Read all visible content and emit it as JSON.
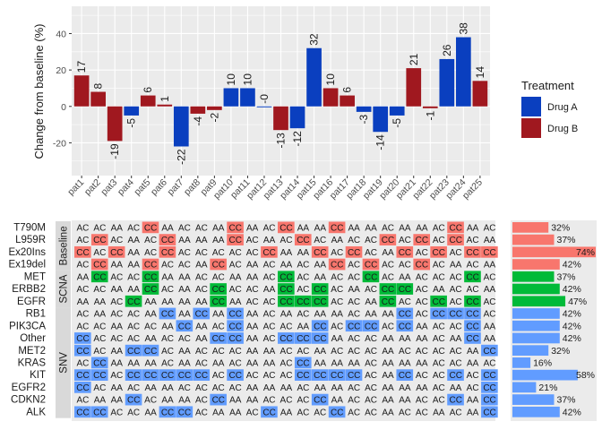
{
  "colors": {
    "drug_a": "#0a3fbf",
    "drug_b": "#a0181f",
    "baseline": "#f8766d",
    "scna": "#00ba38",
    "snv": "#619cff",
    "panel_bg": "#ebebeb",
    "strip_bg": "#d9d9d9",
    "grid": "#ffffff"
  },
  "chart_data": [
    {
      "type": "bar",
      "ylabel": "Change from baseline (%)",
      "ylim": [
        -38,
        55
      ],
      "yticks": [
        -20,
        0,
        20,
        40
      ],
      "grid": true,
      "legend": {
        "title": "Treatment",
        "position": "right",
        "entries": [
          {
            "label": "Drug A",
            "color_key": "drug_a"
          },
          {
            "label": "Drug B",
            "color_key": "drug_b"
          }
        ]
      },
      "categories": [
        "pat1",
        "pat2",
        "pat3",
        "pat4",
        "pat5",
        "pat6",
        "pat7",
        "pat8",
        "pat9",
        "pat10",
        "pat11",
        "pat12",
        "pat13",
        "pat14",
        "pat15",
        "pat16",
        "pat17",
        "pat18",
        "pat19",
        "pat20",
        "pat21",
        "pat22",
        "pat23",
        "pat24",
        "pat25"
      ],
      "values": [
        17,
        8,
        -19,
        -5,
        6,
        1,
        -22,
        -4,
        -2,
        10,
        10,
        0,
        -13,
        -12,
        32,
        10,
        6,
        -3,
        -14,
        -5,
        21,
        -1,
        26,
        38,
        14
      ],
      "labels": [
        "17",
        "8",
        "-19",
        "-5",
        "6",
        "1",
        "-22",
        "-4",
        "-2",
        "10",
        "10",
        "-0",
        "-13",
        "-12",
        "32",
        "10",
        "6",
        "-3",
        "-14",
        "-5",
        "21",
        "-1",
        "26",
        "38",
        "14"
      ],
      "treatment": [
        "Drug B",
        "Drug B",
        "Drug B",
        "Drug A",
        "Drug B",
        "Drug B",
        "Drug A",
        "Drug B",
        "Drug B",
        "Drug A",
        "Drug A",
        "Drug A",
        "Drug B",
        "Drug A",
        "Drug A",
        "Drug B",
        "Drug B",
        "Drug A",
        "Drug A",
        "Drug A",
        "Drug B",
        "Drug B",
        "Drug A",
        "Drug A",
        "Drug B"
      ]
    },
    {
      "type": "heatmap",
      "groups": [
        {
          "label": "Baseline",
          "color_key": "baseline"
        },
        {
          "label": "SCNA",
          "color_key": "scna"
        },
        {
          "label": "SNV",
          "color_key": "snv"
        }
      ],
      "rows": [
        {
          "gene": "T790M",
          "group": 0,
          "cells": "AC AC AA AC CC AA AC AC AA CC AA AC CC AA AA CC AA AA AC AA AA AC CC AA AC",
          "pct": 32,
          "pct_label": "32%"
        },
        {
          "gene": "L959R",
          "group": 0,
          "cells": "AC CC AC AA AC CC AA AA AA CC AC AA AC CC AC AA AC AC CC AC CC AC CC AC AA",
          "pct": 37,
          "pct_label": "37%"
        },
        {
          "gene": "Ex20Ins",
          "group": 0,
          "cells": "CC AC CC AA AC CC AC AC AC AC AC CC AA AA CC AC CC AC AA CC AC CC AC CC CC",
          "pct": 74,
          "pct_label": "74%"
        },
        {
          "gene": "Ex19del",
          "group": 0,
          "cells": "AC CC AA AA CC AC AC AA CC AC AA AC AA AC AA CC AC CC AC AC CC AC AA AC AA",
          "pct": 42,
          "pct_label": "42%"
        },
        {
          "gene": "MET",
          "group": 1,
          "cells": "AA CC AC AC CC AA AA AC AC AA AA AC CC AC AA AC AC CC AC AA AC AC AC CC AC",
          "pct": 37,
          "pct_label": "37%"
        },
        {
          "gene": "ERBB2",
          "group": 1,
          "cells": "AC AC AA AA CC AC AA AC CC AC AC AA CC AC CC AC AA AC CC CC AC AA AC AC AA",
          "pct": 42,
          "pct_label": "42%"
        },
        {
          "gene": "EGFR",
          "group": 1,
          "cells": "AA AA AC CC AA AA AA AA CC AA AC AC CC CC CC AC AC AA CC AC AC CC AC CC AC",
          "pct": 47,
          "pct_label": "47%"
        },
        {
          "gene": "RB1",
          "group": 2,
          "cells": "AC AA AC AC AA CC AA CC AA CC AA AC AA AC AA AA AC AA AA CC AC CC CC CC AC",
          "pct": 42,
          "pct_label": "42%"
        },
        {
          "gene": "PIK3CA",
          "group": 2,
          "cells": "AC AC AA AC AC AA CC AA AC CC AA AC AC AA CC AC CC CC AC CC AA AC AC CC AA",
          "pct": 42,
          "pct_label": "42%"
        },
        {
          "gene": "Other",
          "group": 2,
          "cells": "CC AC AC AC AA AC AC AA CC CC AA AC CC CC CC AA AC AC AA AA AA AC AA CC AA",
          "pct": 42,
          "pct_label": "42%"
        },
        {
          "gene": "MET2",
          "group": 2,
          "cells": "CC AC AA CC CC AC AA AC AC AC AA AA AC AC AA AC AC AC AA AC AC AC AC AA CC",
          "pct": 32,
          "pct_label": "32%"
        },
        {
          "gene": "KRAS",
          "group": 2,
          "cells": "AC CC AA AA AA AC AA AC AA AC AA AA AC CC AA AA AA AC AA AA AA AC AC AA AC",
          "pct": 16,
          "pct_label": "16%"
        },
        {
          "gene": "KIT",
          "group": 2,
          "cells": "CC CC AC CC CC CC CC CC AC CC AC AC AC CC CC CC CC AC AA CC AC AC CC AC CC",
          "pct": 58,
          "pct_label": "58%"
        },
        {
          "gene": "EGFR2",
          "group": 2,
          "cells": "CC AC AA AC AA AA AC AC AC AC AA AA AA AC AA AA AC AC AA AA AA AC AA AC CC",
          "pct": 21,
          "pct_label": "21%"
        },
        {
          "gene": "CDKN2",
          "group": 2,
          "cells": "AC AA AA CC AC AA AA AC CC AA AA AC AC AC CC AA AC AC AA AA AC AC CC AA CC",
          "pct": 37,
          "pct_label": "37%"
        },
        {
          "gene": "ALK",
          "group": 2,
          "cells": "CC CC AC AC AA CC CC AC AA AA AC CC AA AC AC CC AC AC AA AC AC AA AC AA CC",
          "pct": 42,
          "pct_label": "42%"
        }
      ]
    }
  ]
}
